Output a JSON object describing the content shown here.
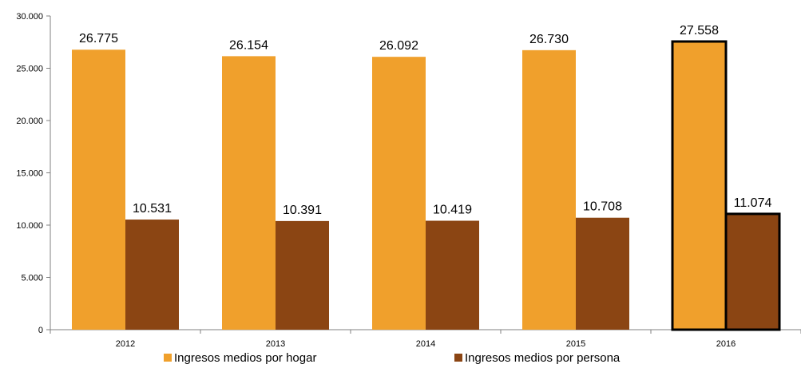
{
  "chart_data": {
    "type": "bar",
    "categories": [
      "2012",
      "2013",
      "2014",
      "2015",
      "2016"
    ],
    "series": [
      {
        "name": "Ingresos medios por hogar",
        "values": [
          26775,
          26154,
          26092,
          26730,
          27558
        ],
        "labels": [
          "26.775",
          "26.154",
          "26.092",
          "26.730",
          "27.558"
        ],
        "color": "#F0A02C"
      },
      {
        "name": "Ingresos medios por persona",
        "values": [
          10531,
          10391,
          10419,
          10708,
          11074
        ],
        "labels": [
          "10.531",
          "10.391",
          "10.419",
          "10.708",
          "11.074"
        ],
        "color": "#8B4513"
      }
    ],
    "ylim": [
      0,
      30000
    ],
    "yticks": [
      0,
      5000,
      10000,
      15000,
      20000,
      25000,
      30000
    ],
    "ytick_labels": [
      "0",
      "5.000",
      "10.000",
      "15.000",
      "20.000",
      "25.000",
      "30.000"
    ],
    "highlighted_category": "2016",
    "grid": false,
    "legend_position": "bottom"
  }
}
